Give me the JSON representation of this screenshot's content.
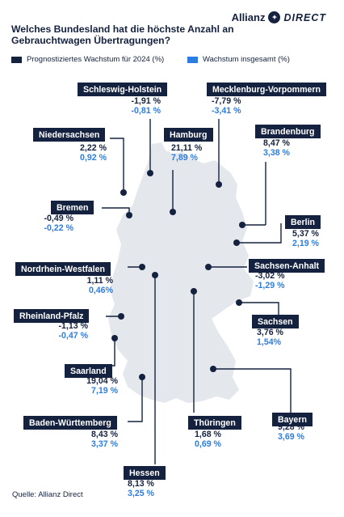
{
  "title": "Welches Bundesland hat die höchste Anzahl an Gebrauchtwagen Übertragungen?",
  "brand": {
    "name": "Allianz",
    "sub": "DIRECT",
    "logo_icon": "eagle-icon"
  },
  "legend": [
    {
      "label": "Prognostiziertes Wachstum für 2024 (%)",
      "color": "#14223f"
    },
    {
      "label": "Wachstum insgesamt (%)",
      "color": "#2d7de0"
    }
  ],
  "colors": {
    "navy": "#14223f",
    "blue": "#2d7de0",
    "map": "#e4e7ec"
  },
  "states": [
    {
      "name": "Schleswig-Holstein",
      "forecast": "-1,91 %",
      "total": "-0,81 %"
    },
    {
      "name": "Mecklenburg-Vorpommern",
      "forecast": "-7,79 %",
      "total": "-3,41 %"
    },
    {
      "name": "Niedersachsen",
      "forecast": "2,22 %",
      "total": "0,92 %"
    },
    {
      "name": "Hamburg",
      "forecast": "21,11 %",
      "total": "7,89 %"
    },
    {
      "name": "Brandenburg",
      "forecast": "8,47 %",
      "total": "3,38 %"
    },
    {
      "name": "Bremen",
      "forecast": "-0,49 %",
      "total": "-0,22 %"
    },
    {
      "name": "Berlin",
      "forecast": "5,37 %",
      "total": "2,19 %"
    },
    {
      "name": "Nordrhein-Westfalen",
      "forecast": "1,11 %",
      "total": "0,46%"
    },
    {
      "name": "Sachsen-Anhalt",
      "forecast": "-3,02 %",
      "total": "-1,29 %"
    },
    {
      "name": "Rheinland-Pfalz",
      "forecast": "-1,13 %",
      "total": "-0,47 %"
    },
    {
      "name": "Sachsen",
      "forecast": "3,76 %",
      "total": "1,54%"
    },
    {
      "name": "Saarland",
      "forecast": "19,04 %",
      "total": "7,19 %"
    },
    {
      "name": "Bayern",
      "forecast": "9,28 %",
      "total": "3,69 %"
    },
    {
      "name": "Baden-Württemberg",
      "forecast": "8,43 %",
      "total": "3,37 %"
    },
    {
      "name": "Thüringen",
      "forecast": "1,68 %",
      "total": "0,69 %"
    },
    {
      "name": "Hessen",
      "forecast": "8,13 %",
      "total": "3,25 %"
    }
  ],
  "source": "Quelle: Allianz Direct"
}
